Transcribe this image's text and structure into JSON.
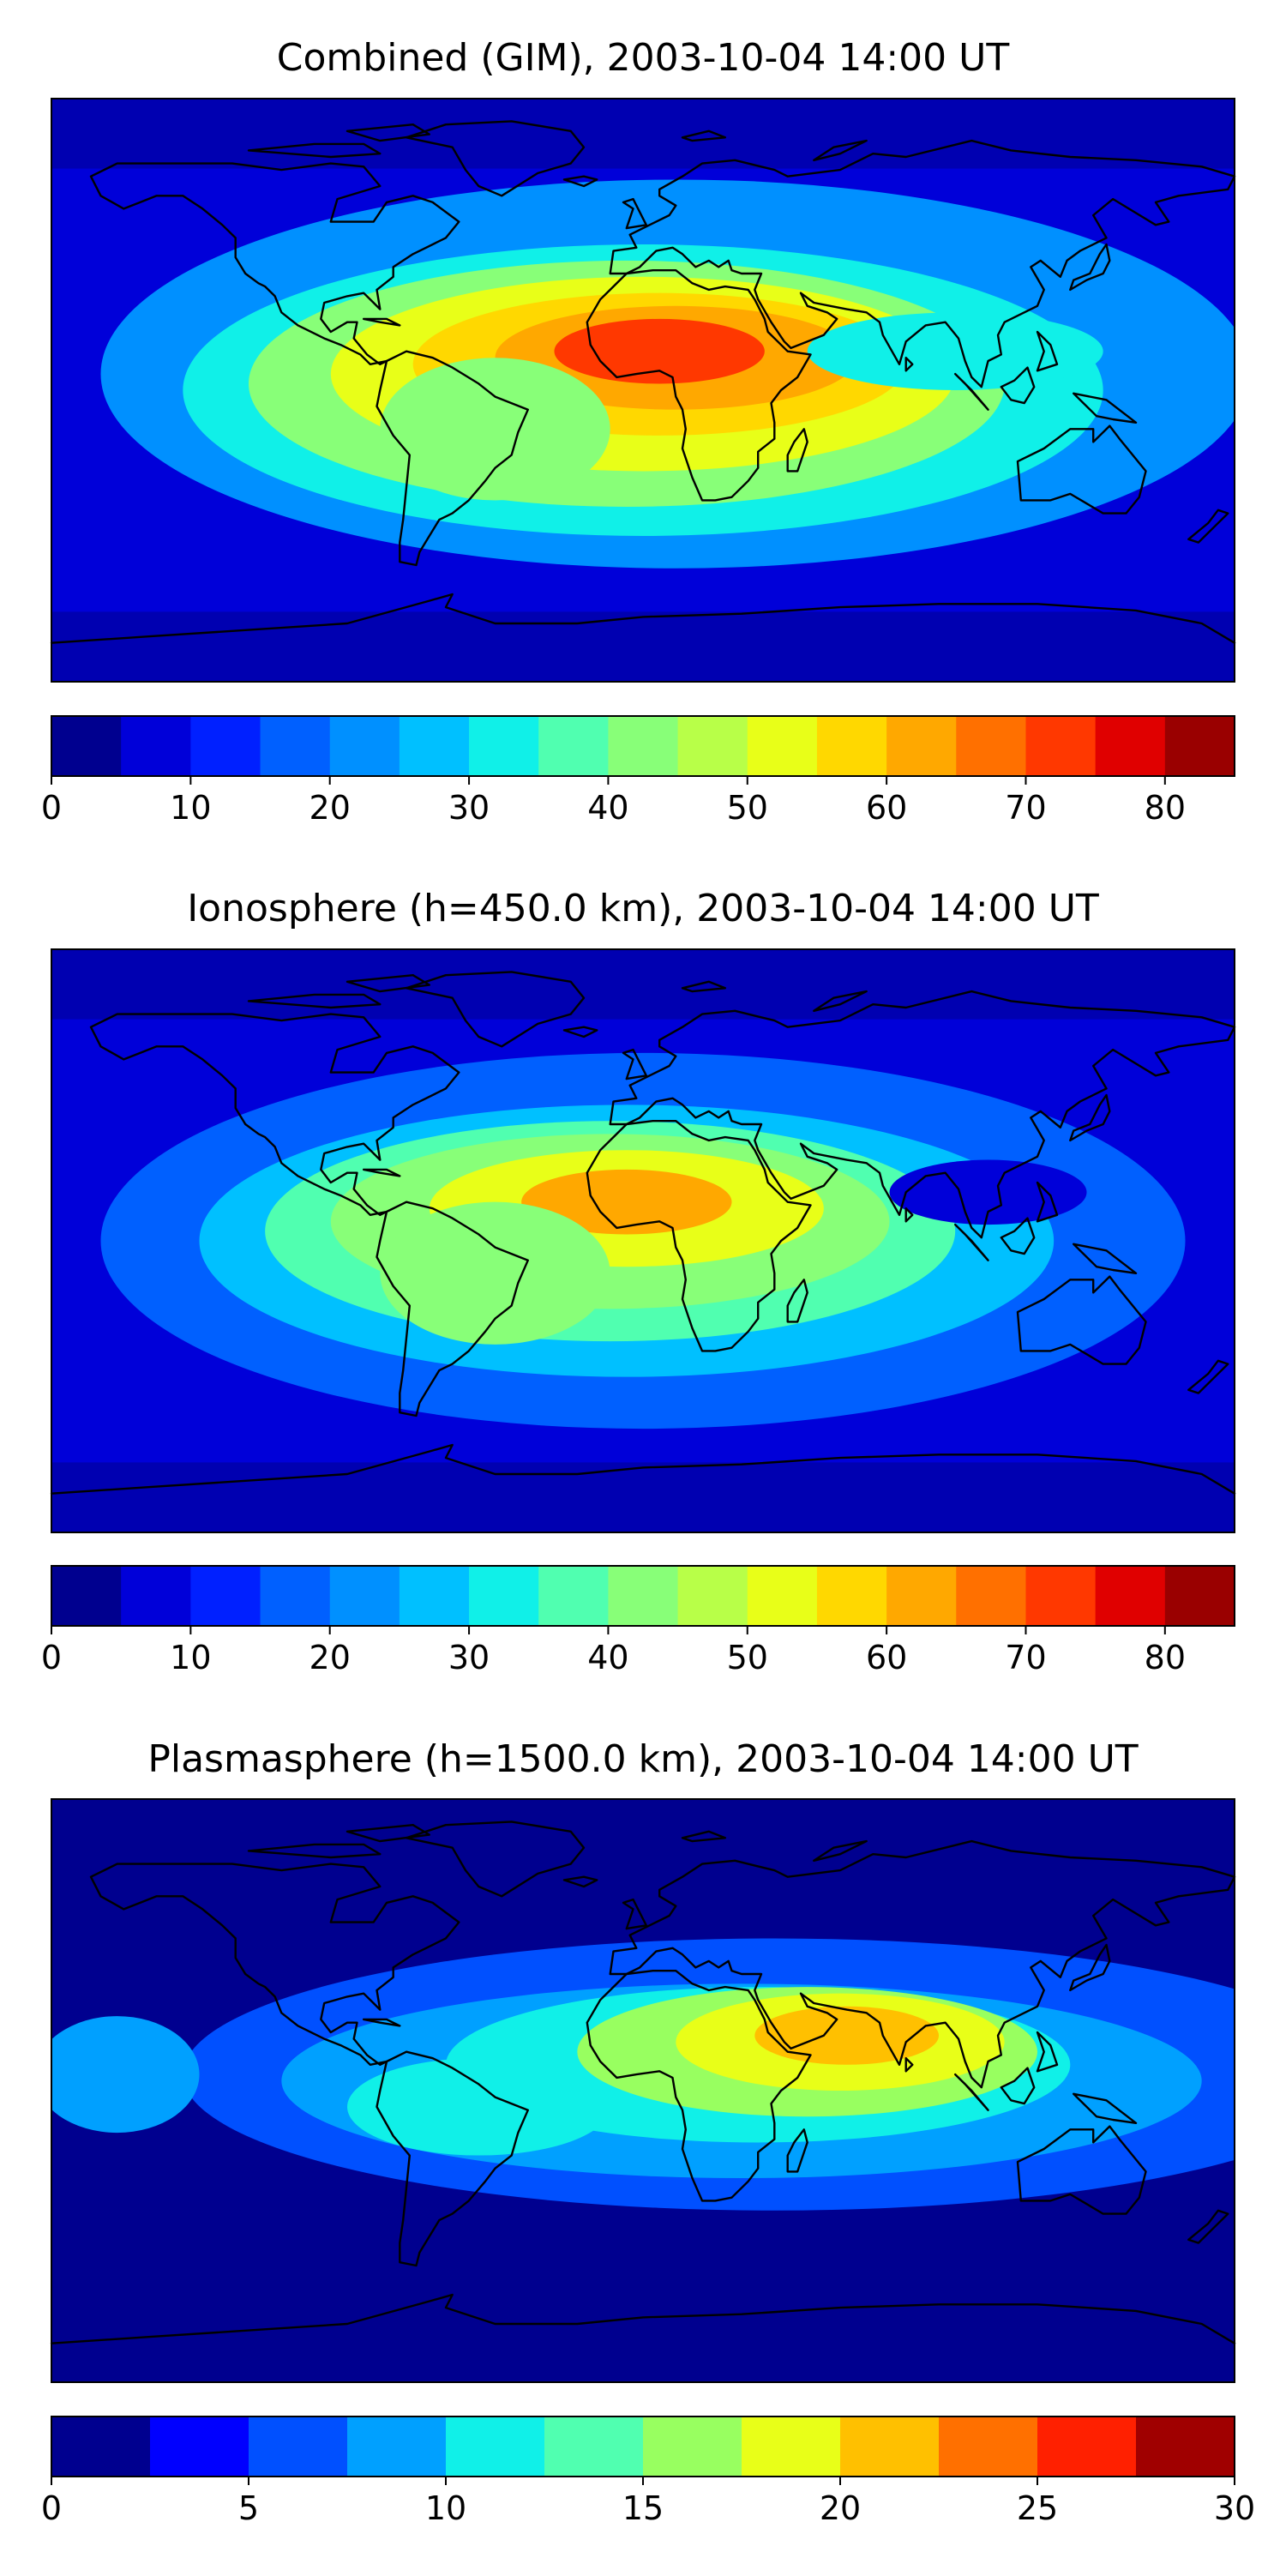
{
  "chart_data": [
    {
      "type": "heatmap",
      "title": "Combined (GIM), 2003-10-04 14:00 UT",
      "colorbar": {
        "ticks": [
          "0",
          "10",
          "20",
          "30",
          "40",
          "50",
          "60",
          "70",
          "80"
        ],
        "tick_values": [
          0,
          10,
          20,
          30,
          40,
          50,
          60,
          70,
          80
        ],
        "range": [
          0,
          85
        ],
        "step": 5,
        "colors": [
          "#00008f",
          "#0000d9",
          "#0020ff",
          "#0060ff",
          "#0090ff",
          "#00c0ff",
          "#10f0e8",
          "#50ffb0",
          "#88ff78",
          "#b8ff48",
          "#e8ff18",
          "#ffd800",
          "#ffa800",
          "#ff7000",
          "#ff3800",
          "#e00000",
          "#9a0000"
        ]
      },
      "peak_center": {
        "lon": 0,
        "lat": 5
      },
      "peak_value": 72,
      "background_value": 8
    },
    {
      "type": "heatmap",
      "title": "Ionosphere  (h=450.0 km), 2003-10-04 14:00 UT",
      "colorbar": {
        "ticks": [
          "0",
          "10",
          "20",
          "30",
          "40",
          "50",
          "60",
          "70",
          "80"
        ],
        "tick_values": [
          0,
          10,
          20,
          30,
          40,
          50,
          60,
          70,
          80
        ],
        "range": [
          0,
          85
        ],
        "step": 5,
        "colors": [
          "#00008f",
          "#0000d9",
          "#0020ff",
          "#0060ff",
          "#0090ff",
          "#00c0ff",
          "#10f0e8",
          "#50ffb0",
          "#88ff78",
          "#b8ff48",
          "#e8ff18",
          "#ffd800",
          "#ffa800",
          "#ff7000",
          "#ff3800",
          "#e00000",
          "#9a0000"
        ]
      },
      "peak_center": {
        "lon": -5,
        "lat": 10
      },
      "peak_value": 62,
      "background_value": 6
    },
    {
      "type": "heatmap",
      "title": "Plasmasphere (h=1500.0 km), 2003-10-04 14:00 UT",
      "colorbar": {
        "ticks": [
          "0",
          "5",
          "10",
          "15",
          "20",
          "25",
          "30"
        ],
        "tick_values": [
          0,
          5,
          10,
          15,
          20,
          25,
          30
        ],
        "range": [
          0,
          30
        ],
        "step": 2.5,
        "colors": [
          "#00008f",
          "#0000ff",
          "#0050ff",
          "#00a0ff",
          "#10f0e8",
          "#50ffb0",
          "#98ff60",
          "#e8ff18",
          "#ffc000",
          "#ff7000",
          "#ff2000",
          "#a00000"
        ]
      },
      "peak_center": {
        "lon": 60,
        "lat": 15
      },
      "peak_value": 22,
      "background_value": 2
    }
  ]
}
